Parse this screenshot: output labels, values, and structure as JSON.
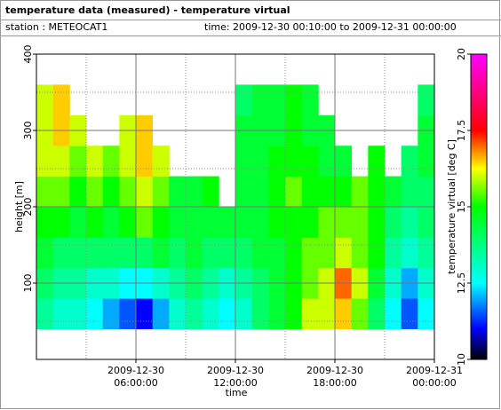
{
  "chart_data": {
    "type": "heatmap",
    "title": "temperature data (measured) - temperature virtual",
    "station": "station : METEOCAT1",
    "time_range": "time: 2009-12-30 00:10:00 to 2009-12-31 00:00:00",
    "xlabel": "time",
    "ylabel": "height [m]",
    "colorbar_label": "temperature virtual [deg C]",
    "xlim": [
      0,
      24
    ],
    "xticks": [
      {
        "value": 6,
        "label": [
          "2009-12-30",
          "06:00:00"
        ]
      },
      {
        "value": 12,
        "label": [
          "2009-12-30",
          "12:00:00"
        ]
      },
      {
        "value": 18,
        "label": [
          "2009-12-30",
          "18:00:00"
        ]
      },
      {
        "value": 24,
        "label": [
          "2009-12-31",
          "00:00:00"
        ]
      }
    ],
    "minor_xticks": [
      3,
      9,
      15,
      21
    ],
    "ylim": [
      0,
      400
    ],
    "yticks": [
      100,
      200,
      300,
      400
    ],
    "minor_yticks": [
      50,
      150,
      250,
      350
    ],
    "grid": true,
    "x_bins": [
      0,
      1,
      2,
      3,
      4,
      5,
      6,
      7,
      8,
      9,
      10,
      11,
      12,
      13,
      14,
      15,
      16,
      17,
      18,
      19,
      20,
      21,
      22,
      23,
      24
    ],
    "y_bins": [
      40,
      80,
      120,
      160,
      200,
      240,
      280,
      320,
      360
    ],
    "values": [
      [
        13.5,
        14,
        14.5,
        15,
        15.5,
        16,
        16,
        16
      ],
      [
        13,
        13.5,
        14,
        15,
        15.5,
        16,
        16.5,
        16.5
      ],
      [
        13,
        13.5,
        14,
        14.5,
        15,
        15.5,
        16,
        null
      ],
      [
        12.5,
        13,
        14,
        15,
        15.5,
        16,
        null,
        null
      ],
      [
        12,
        13,
        14,
        14.5,
        15,
        15.5,
        null,
        null
      ],
      [
        11.5,
        12.5,
        14,
        15,
        15.5,
        16,
        16,
        null
      ],
      [
        11,
        12.5,
        14,
        15.5,
        16,
        16.5,
        16.5,
        null
      ],
      [
        12,
        13,
        14.5,
        15,
        15.5,
        16,
        null,
        null
      ],
      [
        13,
        13.5,
        14,
        14.5,
        14.5,
        null,
        null,
        null
      ],
      [
        13.5,
        14,
        14.5,
        14.5,
        14.5,
        null,
        null,
        null
      ],
      [
        13,
        13.5,
        14,
        14.5,
        15,
        null,
        null,
        null
      ],
      [
        12.5,
        13,
        14,
        14.5,
        null,
        null,
        null,
        null
      ],
      [
        13,
        13.5,
        14,
        14.5,
        14.5,
        14.5,
        14.5,
        14
      ],
      [
        14,
        14,
        14.5,
        14.5,
        14.5,
        14.5,
        14.5,
        14.5
      ],
      [
        14.5,
        14.5,
        14.5,
        15,
        15,
        15,
        14.5,
        14.5
      ],
      [
        15,
        15,
        15,
        15,
        15.5,
        15,
        15,
        15
      ],
      [
        16,
        15.5,
        15.5,
        15,
        15,
        15,
        14.5,
        14.5
      ],
      [
        16,
        16,
        15.5,
        15.5,
        15,
        14.5,
        14.5,
        null
      ],
      [
        16.5,
        17,
        16,
        15.5,
        15,
        14.5,
        null,
        null
      ],
      [
        15.5,
        16,
        15.5,
        15.5,
        15.5,
        null,
        null,
        null
      ],
      [
        14,
        14.5,
        15,
        15,
        15,
        15,
        null,
        null
      ],
      [
        12.5,
        13,
        13.5,
        14,
        14.5,
        null,
        null,
        null
      ],
      [
        11.5,
        12,
        13,
        13.5,
        14,
        14,
        null,
        null
      ],
      [
        12.5,
        13,
        13.5,
        14,
        14,
        14.5,
        14.5,
        14
      ]
    ],
    "clim": [
      10,
      20
    ],
    "cticks": [
      10,
      12.5,
      15,
      17.5,
      20
    ],
    "colorscale": [
      [
        10,
        "#000000"
      ],
      [
        11,
        "#0000ff"
      ],
      [
        12.5,
        "#00ffff"
      ],
      [
        15,
        "#00ff00"
      ],
      [
        16.25,
        "#ffff00"
      ],
      [
        17.5,
        "#ff0000"
      ],
      [
        20,
        "#ff00ff"
      ]
    ]
  }
}
